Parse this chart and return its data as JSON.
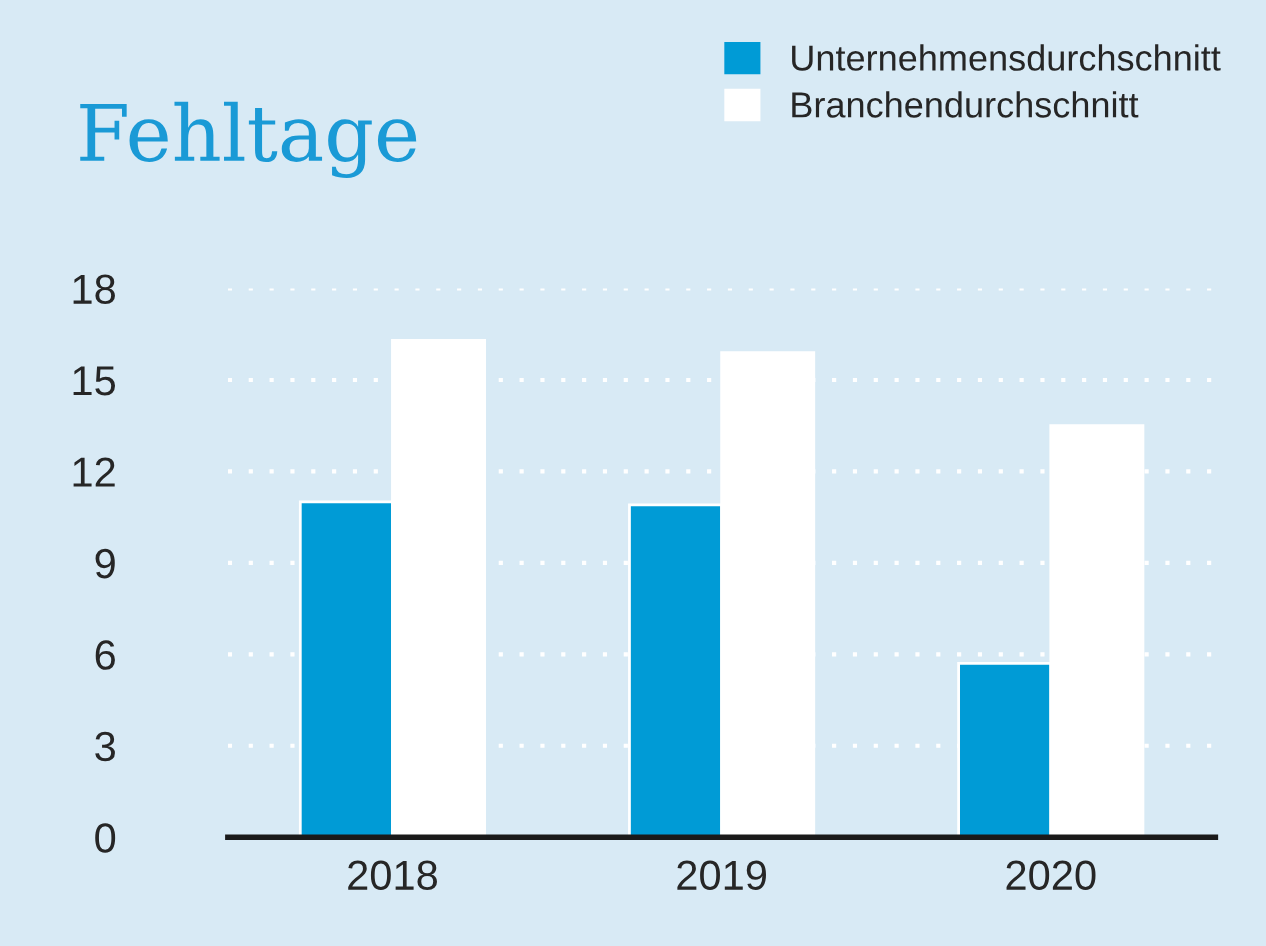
{
  "chart_data": {
    "type": "bar",
    "title": "Fehltage",
    "categories": [
      "2018",
      "2019",
      "2020"
    ],
    "series": [
      {
        "name": "Unternehmensdurchschnitt",
        "color": "#009bd6",
        "values": [
          11.0,
          10.9,
          5.7
        ]
      },
      {
        "name": "Branchendurchschnitt",
        "color": "#ffffff",
        "values": [
          16.3,
          15.9,
          13.5
        ]
      }
    ],
    "ylim": [
      0,
      18
    ],
    "yticks": [
      0,
      3,
      6,
      9,
      12,
      15,
      18
    ],
    "grid": "y",
    "legend": "top right"
  }
}
